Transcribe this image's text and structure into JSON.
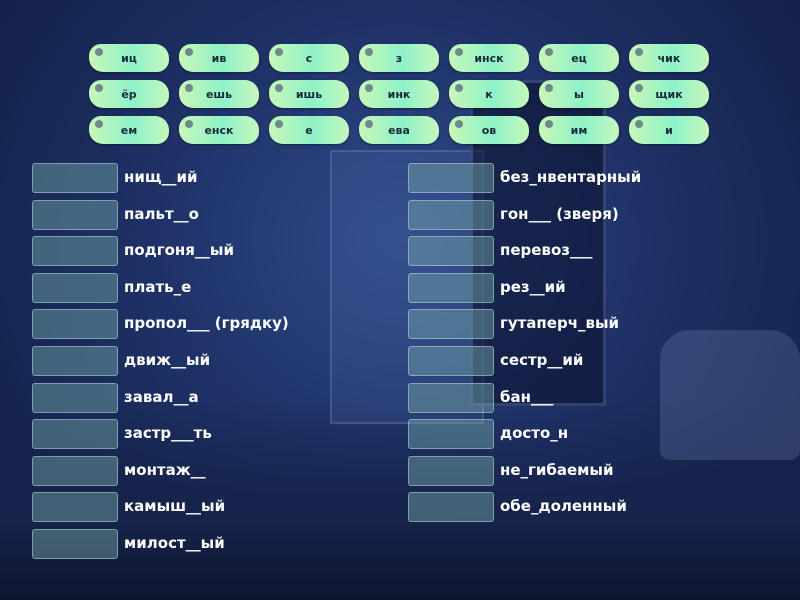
{
  "tiles": [
    "иц",
    "ив",
    "с",
    "з",
    "инск",
    "ец",
    "чик",
    "ёр",
    "ешь",
    "ишь",
    "инк",
    "к",
    "ы",
    "щик",
    "ем",
    "енск",
    "е",
    "ева",
    "ов",
    "им",
    "и"
  ],
  "left_items": [
    "нищ__ий",
    "пальт__о",
    "подгоня__ый",
    "плать_е",
    "пропол___ (грядку)",
    "движ__ый",
    "завал__а",
    "застр___ть",
    "монтаж__",
    "камыш__ый",
    "милост__ый"
  ],
  "right_items": [
    "без_нвентарный",
    "гон___ (зверя)",
    "перевоз___",
    "рез__ий",
    "гутаперч_вый",
    "сестр__ий",
    "бан___",
    "досто_н",
    "не_гибаемый",
    "обе_доленный"
  ],
  "colors": {
    "tile": "#9af2c4",
    "slot": "#78aaaa",
    "text": "#ffffff"
  }
}
